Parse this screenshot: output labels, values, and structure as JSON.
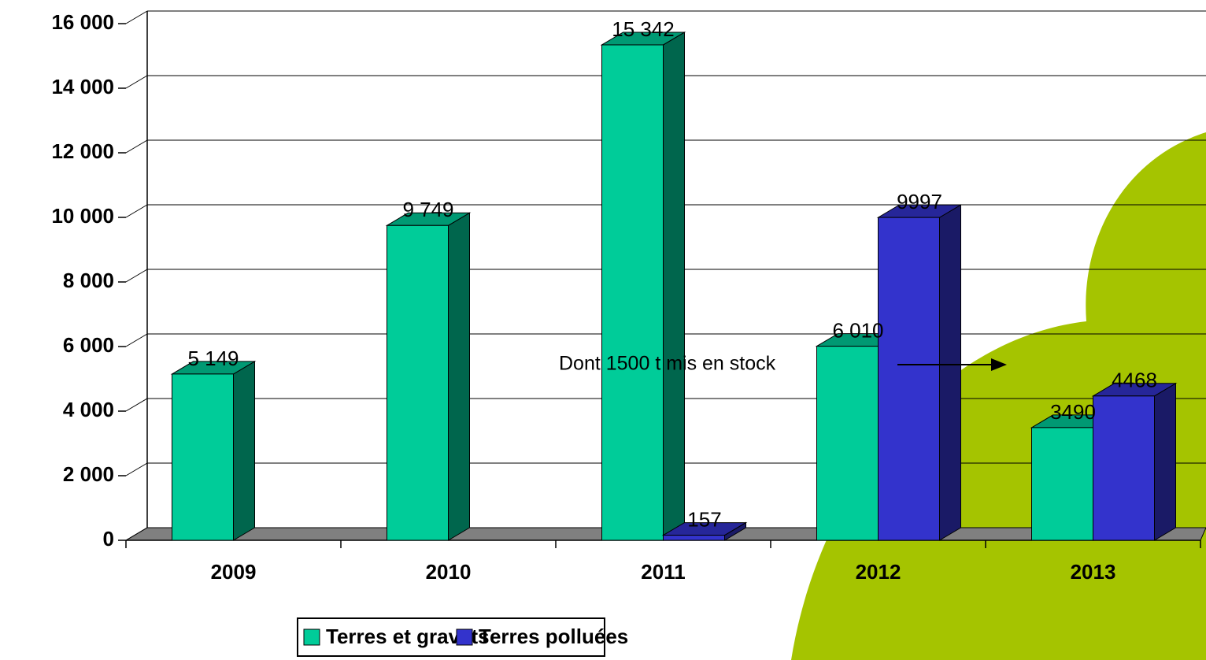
{
  "chart_data": {
    "type": "bar3d",
    "categories": [
      "2009",
      "2010",
      "2011",
      "2012",
      "2013"
    ],
    "series": [
      {
        "name": "Terres et gravats",
        "color": "#00cc99",
        "values": [
          5149,
          9749,
          15342,
          6010,
          3490
        ],
        "value_labels": [
          "5 149",
          "9 749",
          "15 342",
          "6 010",
          "3490"
        ]
      },
      {
        "name": "Terres polluées",
        "color": "#3333cc",
        "values": [
          null,
          null,
          157,
          9997,
          4468
        ],
        "value_labels": [
          null,
          null,
          "157",
          "9997",
          "4468"
        ]
      }
    ],
    "ylim": [
      0,
      16000
    ],
    "yticks": [
      {
        "value": 0,
        "label": "0"
      },
      {
        "value": 2000,
        "label": "2 000"
      },
      {
        "value": 4000,
        "label": "4 000"
      },
      {
        "value": 6000,
        "label": "6 000"
      },
      {
        "value": 8000,
        "label": "8 000"
      },
      {
        "value": 10000,
        "label": "10 000"
      },
      {
        "value": 12000,
        "label": "12 000"
      },
      {
        "value": 14000,
        "label": "14 000"
      },
      {
        "value": 16000,
        "label": "16 000"
      }
    ],
    "grid": true,
    "annotation": "Dont 1500 t mis en stock"
  }
}
